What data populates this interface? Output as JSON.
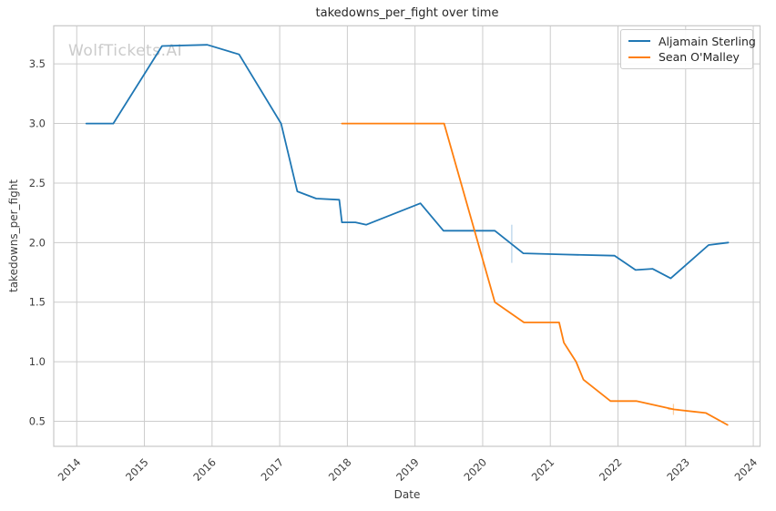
{
  "title": "takedowns_per_fight over time",
  "watermark": "WolfTickets.AI",
  "colors": {
    "grid": "#cccccc",
    "spine": "#c7c7c7",
    "tick_text": "#3d3d3d",
    "title_text": "#262626",
    "series_blue": "#1f77b4",
    "series_orange": "#ff7f0e"
  },
  "chart_data": {
    "type": "line",
    "title": "takedowns_per_fight over time",
    "xlabel": "Date",
    "ylabel": "takedowns_per_fight",
    "grid": true,
    "legend_position": "upper right",
    "x_ticks": [
      2014,
      2015,
      2016,
      2017,
      2018,
      2019,
      2020,
      2021,
      2022,
      2023,
      2024
    ],
    "y_ticks": [
      0.5,
      1.0,
      1.5,
      2.0,
      2.5,
      3.0,
      3.5
    ],
    "xlim": [
      2013.66,
      2024.1
    ],
    "ylim": [
      0.29,
      3.82
    ],
    "series": [
      {
        "name": "Aljamain Sterling",
        "color": "#1f77b4",
        "points": [
          [
            2014.14,
            3.0
          ],
          [
            2014.54,
            3.0
          ],
          [
            2015.26,
            3.65
          ],
          [
            2015.93,
            3.66
          ],
          [
            2016.4,
            3.58
          ],
          [
            2017.02,
            3.0
          ],
          [
            2017.26,
            2.43
          ],
          [
            2017.54,
            2.37
          ],
          [
            2017.88,
            2.36
          ],
          [
            2017.92,
            2.17
          ],
          [
            2018.12,
            2.17
          ],
          [
            2018.28,
            2.15
          ],
          [
            2019.08,
            2.33
          ],
          [
            2019.42,
            2.1
          ],
          [
            2020.18,
            2.1
          ],
          [
            2020.6,
            1.91
          ],
          [
            2021.2,
            1.9
          ],
          [
            2021.95,
            1.89
          ],
          [
            2022.26,
            1.77
          ],
          [
            2022.51,
            1.78
          ],
          [
            2022.78,
            1.7
          ],
          [
            2023.34,
            1.98
          ],
          [
            2023.63,
            2.0
          ]
        ]
      },
      {
        "name": "Sean O'Malley",
        "color": "#ff7f0e",
        "points": [
          [
            2017.92,
            3.0
          ],
          [
            2019.43,
            3.0
          ],
          [
            2020.18,
            1.5
          ],
          [
            2020.61,
            1.33
          ],
          [
            2021.13,
            1.33
          ],
          [
            2021.2,
            1.16
          ],
          [
            2021.38,
            1.0
          ],
          [
            2021.49,
            0.85
          ],
          [
            2021.89,
            0.67
          ],
          [
            2022.27,
            0.67
          ],
          [
            2022.83,
            0.6
          ],
          [
            2023.3,
            0.57
          ],
          [
            2023.62,
            0.47
          ]
        ]
      }
    ],
    "annotations": [
      {
        "type": "vline",
        "x": 2020.43,
        "y1": 1.83,
        "y2": 2.15,
        "color": "#b9d5eb"
      },
      {
        "type": "cross",
        "x": 2022.82,
        "y": 0.6,
        "color": "#fdd0a2"
      }
    ]
  }
}
